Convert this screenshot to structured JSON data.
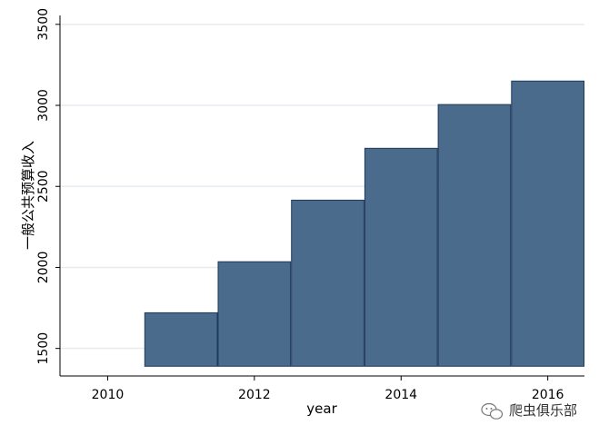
{
  "chart_data": {
    "type": "bar",
    "x": [
      2011,
      2012,
      2013,
      2014,
      2015,
      2016
    ],
    "values": [
      1720,
      2035,
      2415,
      2735,
      3005,
      3150
    ],
    "bar_base": 1390,
    "xlabel": "year",
    "ylabel": "一般公共预算收入",
    "xlim": [
      2009.35,
      2016.5
    ],
    "ylim": [
      1330,
      3555
    ],
    "x_ticks": [
      2010,
      2012,
      2014,
      2016
    ],
    "y_ticks": [
      1500,
      2000,
      2500,
      3000,
      3500
    ],
    "grid": "horizontal",
    "bar_color": "#4a6b8c",
    "bar_edge_color": "#1f3a5a",
    "grid_color": "#e6ecf0"
  },
  "watermark": {
    "icon": "wechat-icon",
    "text": "爬虫俱乐部"
  }
}
